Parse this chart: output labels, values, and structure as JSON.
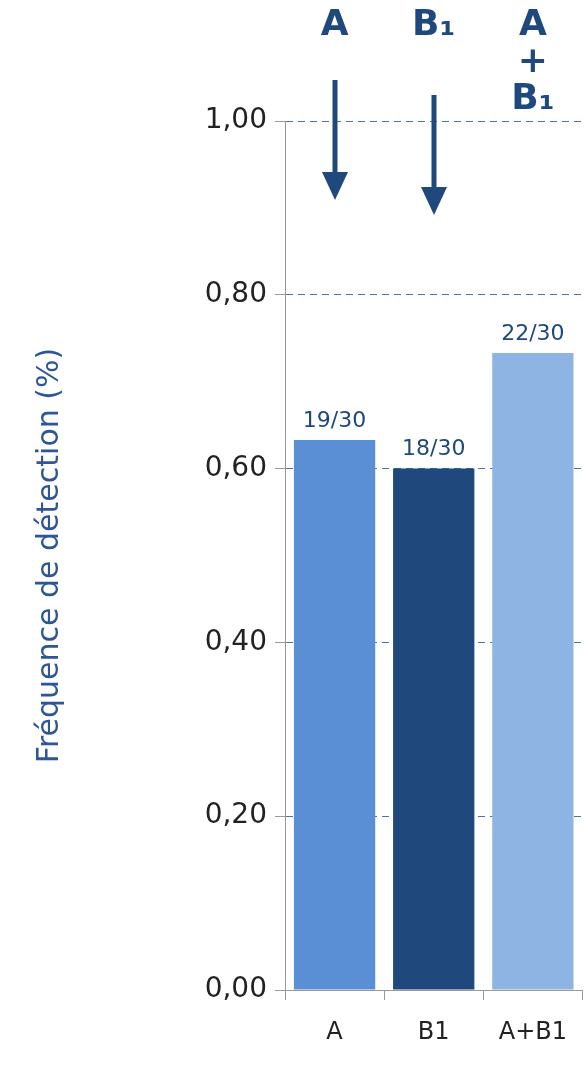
{
  "chart_data": {
    "type": "bar",
    "ylabel": "Fréquence de détection (%)",
    "categories": [
      "A",
      "B1",
      "A+B1"
    ],
    "values": [
      0.633,
      0.6,
      0.733
    ],
    "value_labels": [
      "19/30",
      "18/30",
      "22/30"
    ],
    "colors": [
      "#5a8fd6",
      "#1f497d",
      "#8eb4e3"
    ],
    "ylim": [
      0,
      1
    ],
    "yticks": [
      {
        "value": 0,
        "label": "0,00"
      },
      {
        "value": 0.2,
        "label": "0,20"
      },
      {
        "value": 0.4,
        "label": "0,40"
      },
      {
        "value": 0.6,
        "label": "0,60"
      },
      {
        "value": 0.8,
        "label": "0,80"
      },
      {
        "value": 1,
        "label": "1,00"
      }
    ],
    "grid": "y",
    "legend": false,
    "annotations": [
      "A",
      "B₁",
      "A + B₁"
    ]
  }
}
